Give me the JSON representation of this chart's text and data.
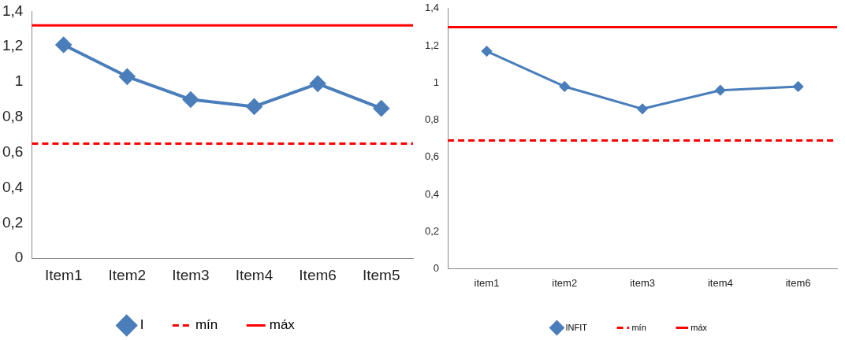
{
  "chart_data": [
    {
      "type": "line",
      "categories": [
        "Item1",
        "Item2",
        "Item3",
        "Item4",
        "Item6",
        "Item5"
      ],
      "series": [
        {
          "name": "I",
          "color": "#4a7ebb",
          "values": [
            1.21,
            1.03,
            0.9,
            0.86,
            0.99,
            0.85
          ]
        }
      ],
      "ylim": [
        0,
        1.4
      ],
      "yticks": [
        {
          "value": 0,
          "label": "0"
        },
        {
          "value": 0.2,
          "label": "0,2"
        },
        {
          "value": 0.4,
          "label": "0,4"
        },
        {
          "value": 0.6,
          "label": "0,6"
        },
        {
          "value": 0.8,
          "label": "0,8"
        },
        {
          "value": 1,
          "label": "1"
        },
        {
          "value": 1.2,
          "label": "1,2"
        },
        {
          "value": 1.4,
          "label": "1,4"
        }
      ],
      "ref_lines": [
        {
          "axis": "y",
          "value": 0.65,
          "label": "mín",
          "color": "#ff0000",
          "line_style": "dashed"
        },
        {
          "axis": "y",
          "value": 1.32,
          "label": "máx",
          "color": "#ff0000",
          "line_style": "solid"
        }
      ],
      "marker": "diamond",
      "legend": "bottom",
      "grid": false
    },
    {
      "type": "line",
      "categories": [
        "item1",
        "item2",
        "item3",
        "item4",
        "item6"
      ],
      "series": [
        {
          "name": "INFIT",
          "color": "#4a7ebb",
          "values": [
            1.17,
            0.98,
            0.86,
            0.96,
            0.98
          ]
        }
      ],
      "ylim": [
        0,
        1.4
      ],
      "yticks": [
        {
          "value": 0,
          "label": "0"
        },
        {
          "value": 0.2,
          "label": "0,2"
        },
        {
          "value": 0.4,
          "label": "0,4"
        },
        {
          "value": 0.6,
          "label": "0,6"
        },
        {
          "value": 0.8,
          "label": "0,8"
        },
        {
          "value": 1,
          "label": "1"
        },
        {
          "value": 1.2,
          "label": "1,2"
        },
        {
          "value": 1.4,
          "label": "1,4"
        }
      ],
      "ref_lines": [
        {
          "axis": "y",
          "value": 0.69,
          "label": "mín",
          "color": "#ff0000",
          "line_style": "dashed"
        },
        {
          "axis": "y",
          "value": 1.3,
          "label": "máx",
          "color": "#ff0000",
          "line_style": "solid"
        }
      ],
      "marker": "diamond",
      "legend": "bottom",
      "grid": false
    }
  ]
}
